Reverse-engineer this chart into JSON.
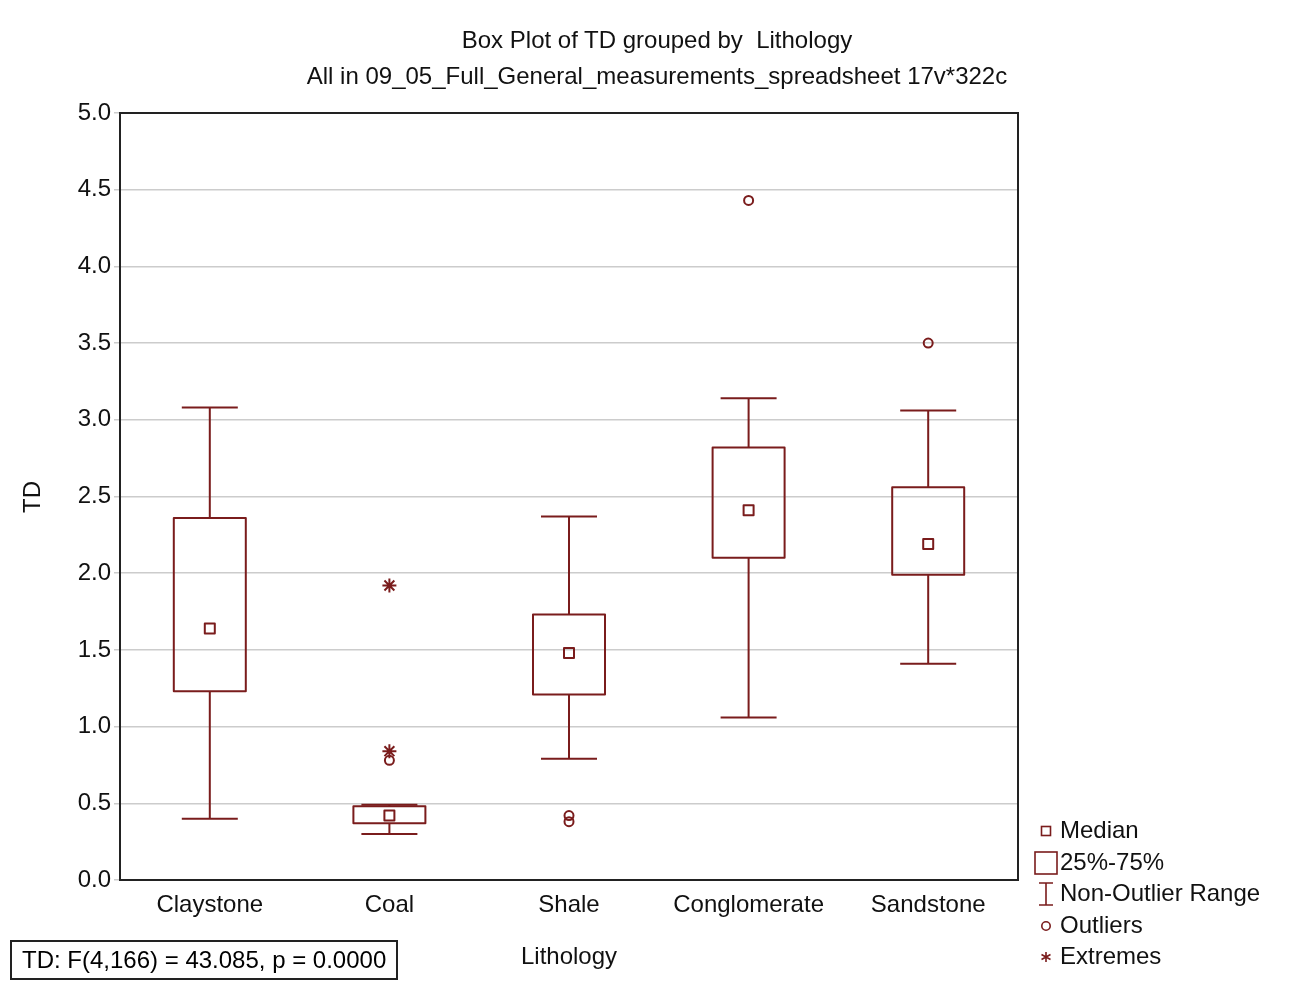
{
  "chart_data": {
    "type": "box",
    "title": "Box Plot of TD grouped by  Lithology",
    "subtitle": "All in 09_05_Full_General_measurements_spreadsheet 17v*322c",
    "xlabel": "Lithology",
    "ylabel": "TD",
    "categories": [
      "Claystone",
      "Coal",
      "Shale",
      "Conglomerate",
      "Sandstone"
    ],
    "ylim": [
      0,
      5
    ],
    "yticks": [
      {
        "value": 0,
        "label": "0.0"
      },
      {
        "value": 0.5,
        "label": "0.5"
      },
      {
        "value": 1,
        "label": "1.0"
      },
      {
        "value": 1.5,
        "label": "1.5"
      },
      {
        "value": 2,
        "label": "2.0"
      },
      {
        "value": 2.5,
        "label": "2.5"
      },
      {
        "value": 3,
        "label": "3.0"
      },
      {
        "value": 3.5,
        "label": "3.5"
      },
      {
        "value": 4,
        "label": "4.0"
      },
      {
        "value": 4.5,
        "label": "4.5"
      },
      {
        "value": 5,
        "label": "5.0"
      }
    ],
    "grid": "y",
    "series": [
      {
        "color": "#7a1c1c",
        "boxes": [
          {
            "low": 0.4,
            "q1": 1.23,
            "median": 1.64,
            "q3": 2.36,
            "high": 3.08
          },
          {
            "low": 0.3,
            "q1": 0.37,
            "median": 0.42,
            "q3": 0.48,
            "high": 0.49,
            "outliers": [
              0.78
            ]
          },
          {
            "low": 0.79,
            "q1": 1.21,
            "median": 1.48,
            "q3": 1.73,
            "high": 2.37,
            "outliers": [
              0.42,
              0.38
            ]
          },
          {
            "low": 1.06,
            "q1": 2.1,
            "median": 2.41,
            "q3": 2.82,
            "high": 3.14,
            "outliers": [
              4.43
            ]
          },
          {
            "low": 1.41,
            "q1": 1.99,
            "median": 2.19,
            "q3": 2.56,
            "high": 3.06,
            "outliers": [
              3.5
            ]
          }
        ]
      },
      {
        "type": "scatter",
        "color": "#7a1c1c",
        "marker": "cross",
        "x": [
          "Coal",
          "Coal"
        ],
        "values": [
          0.84,
          1.92
        ]
      }
    ],
    "annotations": [
      "TD:  F(4,166) = 43.085, p = 0.0000",
      "Median",
      "25%-75%",
      "Non-Outlier Range",
      "Outliers",
      "Extremes"
    ]
  }
}
